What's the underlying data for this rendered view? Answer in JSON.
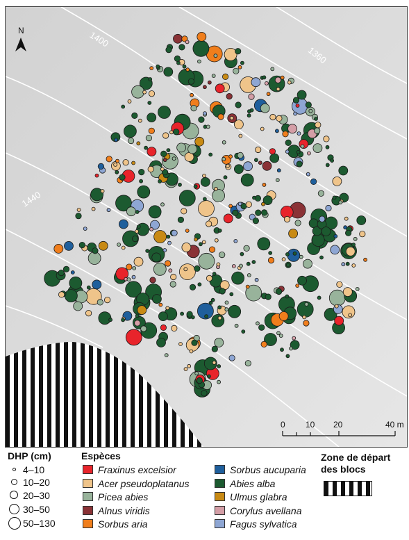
{
  "north_label": "N",
  "contours": [
    "1400",
    "1360",
    "1440"
  ],
  "scale": {
    "ticks": [
      "0",
      "10",
      "20",
      "40 m"
    ]
  },
  "legend": {
    "dhp_title": "DHP (cm)",
    "dhp_classes": [
      "4–10",
      "10–20",
      "20–30",
      "30–50",
      "50–130"
    ],
    "species_title": "Espèces",
    "species": [
      {
        "name": "Fraxinus excelsior",
        "color": "#e8242b"
      },
      {
        "name": "Acer pseudoplatanus",
        "color": "#efc48a"
      },
      {
        "name": "Picea abies",
        "color": "#98b39b"
      },
      {
        "name": "Alnus viridis",
        "color": "#8a3236"
      },
      {
        "name": "Sorbus aria",
        "color": "#f07e1c"
      },
      {
        "name": "Sorbus aucuparia",
        "color": "#1f5f9c"
      },
      {
        "name": "Abies alba",
        "color": "#1c5a30"
      },
      {
        "name": "Ulmus glabra",
        "color": "#c88a14"
      },
      {
        "name": "Corylus avellana",
        "color": "#d49ea6"
      },
      {
        "name": "Fagus sylvatica",
        "color": "#8ea6d3"
      }
    ],
    "zone_title_1": "Zone de départ",
    "zone_title_2": "des blocs"
  }
}
